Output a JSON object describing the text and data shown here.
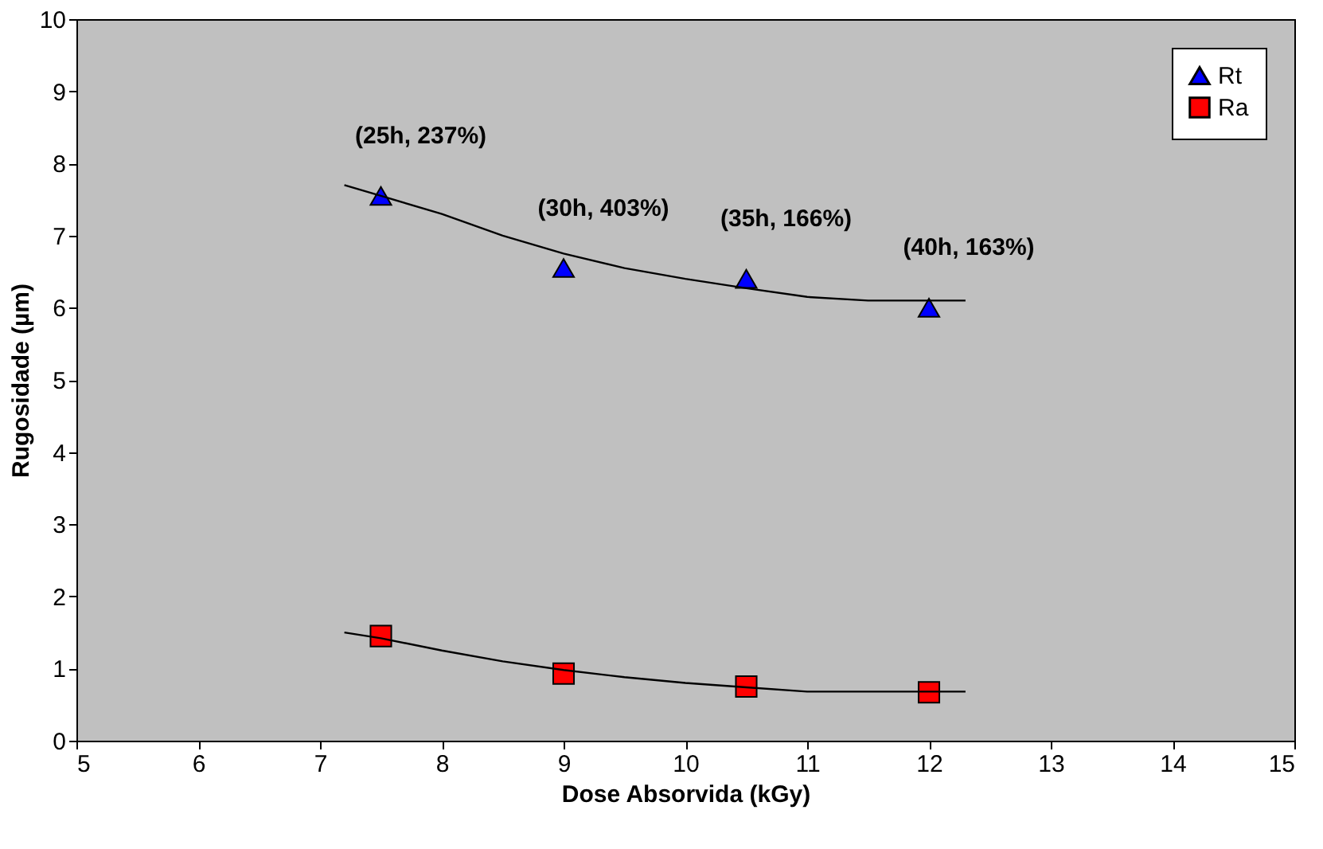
{
  "chart_data": {
    "type": "scatter",
    "xlabel": "Dose Absorvida (kGy)",
    "ylabel": "Rugosidade (µm)",
    "xlim": [
      5,
      15
    ],
    "xticks": [
      5,
      6,
      7,
      8,
      9,
      10,
      11,
      12,
      13,
      14,
      15
    ],
    "ylim": [
      0,
      10
    ],
    "yticks": [
      0,
      1,
      2,
      3,
      4,
      5,
      6,
      7,
      8,
      9,
      10
    ],
    "grid": false,
    "legend": "top right",
    "series": [
      {
        "name": "Rt",
        "marker": "triangle",
        "color": "#0000ff",
        "x": [
          7.5,
          9,
          10.5,
          12
        ],
        "values": [
          7.55,
          6.55,
          6.4,
          6.0
        ]
      },
      {
        "name": "Ra",
        "marker": "square",
        "color": "#ff0000",
        "x": [
          7.5,
          9,
          10.5,
          12
        ],
        "values": [
          1.45,
          0.93,
          0.75,
          0.67
        ]
      },
      {
        "type": "line",
        "color": "#000000",
        "x": [
          7.2,
          7.5,
          8,
          8.5,
          9,
          9.5,
          10,
          10.5,
          11,
          11.5,
          12,
          12.3
        ],
        "values": [
          7.7,
          7.55,
          7.3,
          7.0,
          6.75,
          6.55,
          6.4,
          6.27,
          6.15,
          6.1,
          6.1,
          6.1
        ]
      },
      {
        "type": "line",
        "color": "#000000",
        "x": [
          7.2,
          7.5,
          8,
          8.5,
          9,
          9.5,
          10,
          10.5,
          11,
          11.5,
          12,
          12.3
        ],
        "values": [
          1.5,
          1.42,
          1.25,
          1.1,
          0.98,
          0.88,
          0.8,
          0.74,
          0.68,
          0.68,
          0.68,
          0.68
        ]
      }
    ],
    "annotations": [
      {
        "text": "(25h, 237%)",
        "x": 7.5,
        "y": 7.55
      },
      {
        "text": "(30h, 403%)",
        "x": 9,
        "y": 6.55
      },
      {
        "text": "(35h, 166%)",
        "x": 10.5,
        "y": 6.4
      },
      {
        "text": "(40h, 163%)",
        "x": 12,
        "y": 6.0
      }
    ]
  }
}
